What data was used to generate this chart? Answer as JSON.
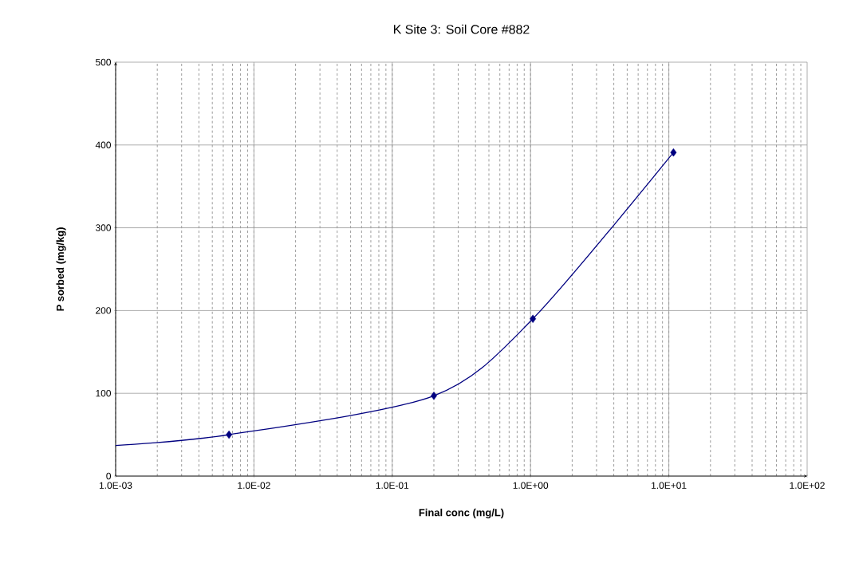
{
  "chart_data": {
    "type": "line",
    "title": "K Site 3: Soil Core #882",
    "xlabel": "Final conc (mg/L)",
    "ylabel": "P sorbed (mg/kg)",
    "log": "x",
    "grid": true,
    "line_style": "solid",
    "xlim": [
      0.001,
      100
    ],
    "ylim": [
      0,
      500
    ],
    "xticks": [
      {
        "value": 0.001,
        "label": "1.0E-03"
      },
      {
        "value": 0.01,
        "label": "1.0E-02"
      },
      {
        "value": 0.1,
        "label": "1.0E-01"
      },
      {
        "value": 1,
        "label": "1.0E+00"
      },
      {
        "value": 10,
        "label": "1.0E+01"
      },
      {
        "value": 100,
        "label": "1.0E+02"
      }
    ],
    "yticks": [
      0,
      100,
      200,
      300,
      400,
      500
    ],
    "series": [
      {
        "color": "#000080",
        "marker": "none",
        "x": [
          0.001,
          0.0066,
          0.2,
          1.04,
          10.8
        ],
        "values": [
          37,
          50,
          97,
          190,
          391
        ]
      },
      {
        "type": "scatter",
        "color": "#000080",
        "marker": "diamond",
        "x": [
          0.0066,
          0.2,
          1.04,
          10.8
        ],
        "values": [
          50,
          97,
          190,
          391
        ]
      }
    ]
  }
}
